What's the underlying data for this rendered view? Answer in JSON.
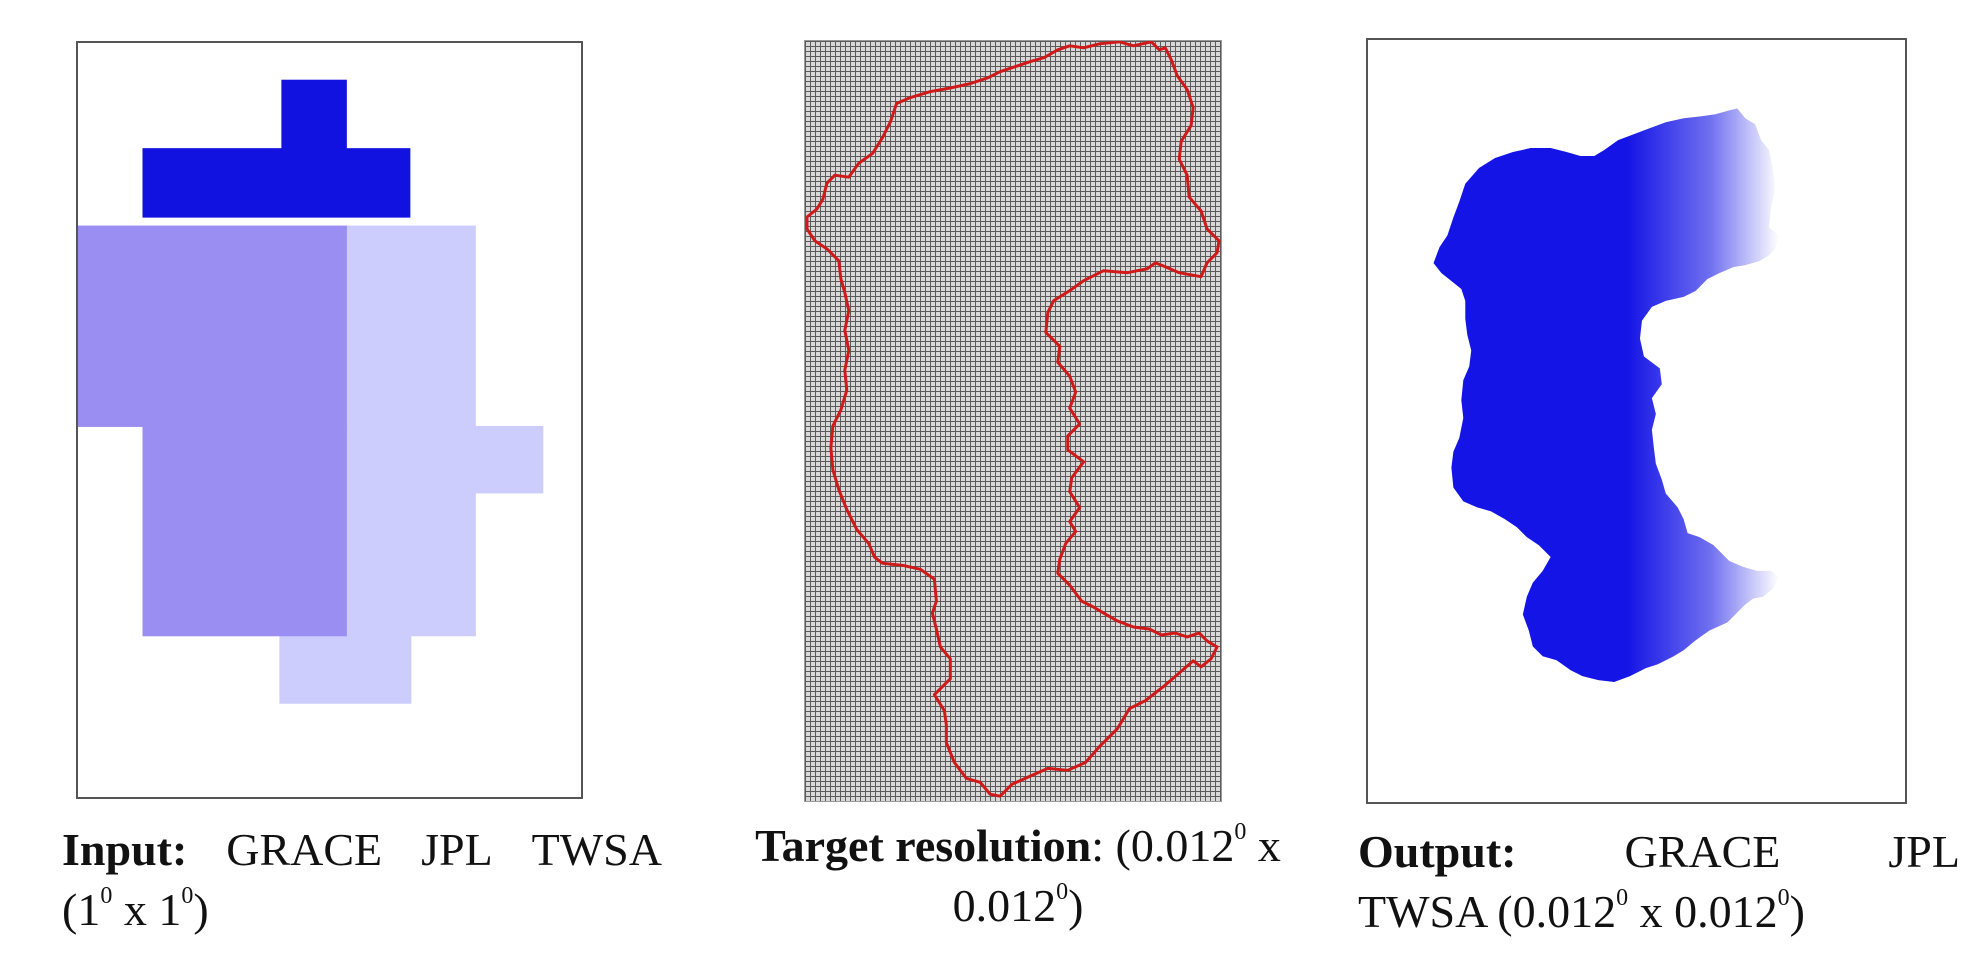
{
  "panels": {
    "input": {
      "label_bold": "Input:",
      "words": [
        "GRACE",
        "JPL",
        "TWSA"
      ],
      "open_paren": "(1",
      "deg1": "0",
      "times": " x 1",
      "deg2": "0",
      "close_paren": ")",
      "colors": {
        "dark": "#1212e0",
        "medium": "#9a8ef2",
        "light": "#ccccfd"
      }
    },
    "target": {
      "label_bold": "Target resolution",
      "colon_open": ": (0.012",
      "deg1": "0",
      "times": " x",
      "value2": "0.012",
      "deg2": "0",
      "close_paren": ")",
      "colors": {
        "grid": "#5a5a5a",
        "boundary": "#d01a1a"
      }
    },
    "output": {
      "label_bold": "Output:",
      "words": [
        "GRACE",
        "JPL"
      ],
      "line2_start": "TWSA (0.012",
      "deg1": "0",
      "times": " x 0.012",
      "deg2": "0",
      "close_paren": ")",
      "colors": {
        "dark": "#1414e6",
        "light": "#ffffff"
      }
    }
  }
}
